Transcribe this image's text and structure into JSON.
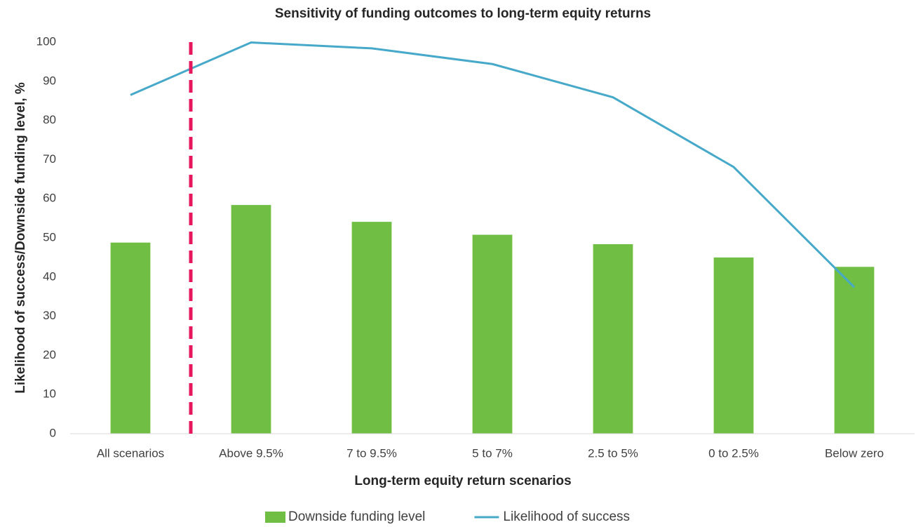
{
  "chart_data": {
    "type": "combo",
    "title": "Sensitivity of funding outcomes to long-term equity returns",
    "x_label": "Long-term equity return scenarios",
    "y_label": "Likelihood of success/Downside funding level, %",
    "categories": [
      "All scenarios",
      "Above 9.5%",
      "7 to 9.5%",
      "5 to 7%",
      "2.5 to 5%",
      "0 to 2.5%",
      "Below zero"
    ],
    "series": [
      {
        "name": "Downside funding level",
        "type": "bar",
        "color": "#70bf44",
        "values": [
          48.8,
          58.4,
          54.1,
          50.8,
          48.4,
          45.0,
          42.6
        ]
      },
      {
        "name": "Likelihood of success",
        "type": "line",
        "color": "#47a9c9",
        "values": [
          86.5,
          99.9,
          98.4,
          94.4,
          85.9,
          68.1,
          37.4
        ]
      }
    ],
    "ylim": [
      0,
      100
    ],
    "yticks": [
      0,
      10,
      20,
      30,
      40,
      50,
      60,
      70,
      80,
      90,
      100
    ],
    "grid": false,
    "legend": "bottom"
  }
}
